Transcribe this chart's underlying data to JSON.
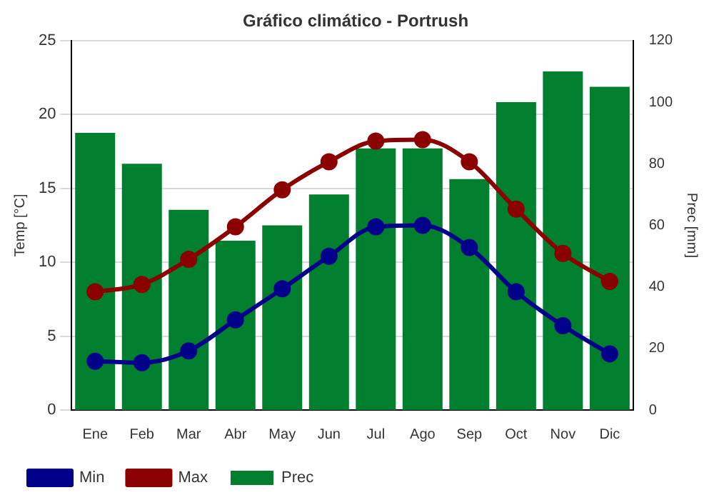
{
  "chart_data": {
    "type": "bar",
    "title": "Gráfico climático - Portrush",
    "ylabel": "Temp [°C]",
    "y2label": "Prec [mm]",
    "categories": [
      "Ene",
      "Feb",
      "Mar",
      "Abr",
      "May",
      "Jun",
      "Jul",
      "Ago",
      "Sep",
      "Oct",
      "Nov",
      "Dic"
    ],
    "series": [
      {
        "name": "Prec",
        "axis": "y2",
        "color": "#007f2f",
        "values": [
          90,
          80,
          65,
          55,
          60,
          70,
          85,
          85,
          75,
          100,
          110,
          105
        ]
      },
      {
        "name": "Min",
        "type": "line",
        "color": "#00008b",
        "values": [
          3.3,
          3.2,
          4.0,
          6.1,
          8.2,
          10.4,
          12.4,
          12.5,
          11.0,
          8.0,
          5.7,
          3.8
        ]
      },
      {
        "name": "Max",
        "type": "line",
        "color": "#8b0000",
        "values": [
          8.0,
          8.5,
          10.2,
          12.4,
          14.9,
          16.8,
          18.2,
          18.3,
          16.8,
          13.6,
          10.6,
          8.7
        ]
      }
    ],
    "ylim": [
      0,
      25
    ],
    "yticks": [
      0,
      5,
      10,
      15,
      20,
      25
    ],
    "y2lim": [
      0,
      120
    ],
    "y2ticks": [
      0,
      20,
      40,
      60,
      80,
      100,
      120
    ],
    "grid": "y",
    "legend": "bottom",
    "marker": "circle",
    "line_style": "solid"
  }
}
